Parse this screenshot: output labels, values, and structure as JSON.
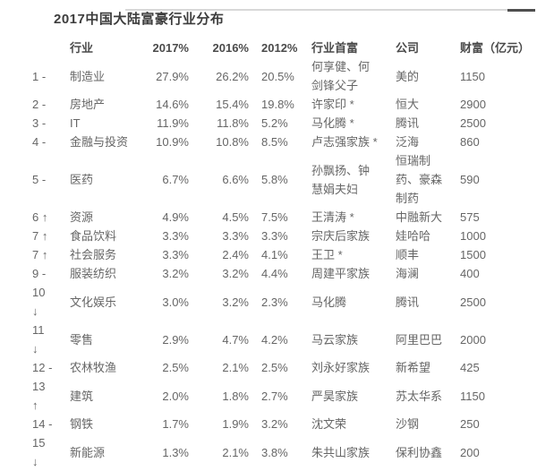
{
  "title": "2017中国大陆富豪行业分布",
  "colors": {
    "background": "#ffffff",
    "title_text": "#3d3d3d",
    "header_text": "#4a4a4a",
    "body_text": "#666666",
    "top_line_light": "#d8d8d8",
    "top_line_dark": "#4f4f4f"
  },
  "icons": {
    "rank-up-icon": "↑",
    "rank-down-icon": "↓",
    "rank-unchanged-icon": "-"
  },
  "chart_data": {
    "type": "table",
    "title": "2017中国大陆富豪行业分布",
    "columns": [
      {
        "key": "rank",
        "label": ""
      },
      {
        "key": "industry",
        "label": "行业"
      },
      {
        "key": "p2017",
        "label": "2017%"
      },
      {
        "key": "p2016",
        "label": "2016%"
      },
      {
        "key": "p2012",
        "label": "2012%"
      },
      {
        "key": "richest",
        "label": "行业首富"
      },
      {
        "key": "company",
        "label": "公司"
      },
      {
        "key": "wealth",
        "label": "财富（亿元）"
      }
    ],
    "rows": [
      {
        "rank": "1 -",
        "industry": "制造业",
        "p2017": "27.9%",
        "p2016": "26.2%",
        "p2012": "20.5%",
        "richest": "何享健、何\n剑锋父子",
        "company": "美的",
        "wealth": "1150"
      },
      {
        "rank": "2 -",
        "industry": "房地产",
        "p2017": "14.6%",
        "p2016": "15.4%",
        "p2012": "19.8%",
        "richest": "许家印 *",
        "company": "恒大",
        "wealth": "2900"
      },
      {
        "rank": "3 -",
        "industry": "IT",
        "p2017": "11.9%",
        "p2016": "11.8%",
        "p2012": "5.2%",
        "richest": "马化腾 *",
        "company": "腾讯",
        "wealth": "2500"
      },
      {
        "rank": "4 -",
        "industry": "金融与投资",
        "p2017": "10.9%",
        "p2016": "10.8%",
        "p2012": "8.5%",
        "richest": "卢志强家族 *",
        "company": "泛海",
        "wealth": "860"
      },
      {
        "rank": "5 -",
        "industry": "医药",
        "p2017": "6.7%",
        "p2016": "6.6%",
        "p2012": "5.8%",
        "richest": "孙飘扬、钟\n慧娟夫妇",
        "company": "恒瑞制\n药、豪森\n制药",
        "wealth": "590"
      },
      {
        "rank": "6 ↑",
        "industry": "资源",
        "p2017": "4.9%",
        "p2016": "4.5%",
        "p2012": "7.5%",
        "richest": "王清涛 *",
        "company": "中融新大",
        "wealth": "575"
      },
      {
        "rank": "7 ↑",
        "industry": "食品饮料",
        "p2017": "3.3%",
        "p2016": "3.3%",
        "p2012": "3.3%",
        "richest": "宗庆后家族",
        "company": "娃哈哈",
        "wealth": "1000"
      },
      {
        "rank": "7 ↑",
        "industry": "社会服务",
        "p2017": "3.3%",
        "p2016": "2.4%",
        "p2012": "4.1%",
        "richest": "王卫 *",
        "company": "顺丰",
        "wealth": "1500"
      },
      {
        "rank": "9 -",
        "industry": "服装纺织",
        "p2017": "3.2%",
        "p2016": "3.2%",
        "p2012": "4.4%",
        "richest": "周建平家族",
        "company": "海澜",
        "wealth": "400"
      },
      {
        "rank": "10\n↓",
        "industry": "文化娱乐",
        "p2017": "3.0%",
        "p2016": "3.2%",
        "p2012": "2.3%",
        "richest": "马化腾",
        "company": "腾讯",
        "wealth": "2500"
      },
      {
        "rank": "11\n↓",
        "industry": "零售",
        "p2017": "2.9%",
        "p2016": "4.7%",
        "p2012": "4.2%",
        "richest": "马云家族",
        "company": "阿里巴巴",
        "wealth": "2000"
      },
      {
        "rank": "12 -",
        "industry": "农林牧渔",
        "p2017": "2.5%",
        "p2016": "2.1%",
        "p2012": "2.5%",
        "richest": "刘永好家族",
        "company": "新希望",
        "wealth": "425"
      },
      {
        "rank": "13\n↑",
        "industry": "建筑",
        "p2017": "2.0%",
        "p2016": "1.8%",
        "p2012": "2.7%",
        "richest": "严昊家族",
        "company": "苏太华系",
        "wealth": "1150"
      },
      {
        "rank": "14 -",
        "industry": "钢铁",
        "p2017": "1.7%",
        "p2016": "1.9%",
        "p2012": "3.2%",
        "richest": "沈文荣",
        "company": "沙钢",
        "wealth": "250"
      },
      {
        "rank": "15\n↓",
        "industry": "新能源",
        "p2017": "1.3%",
        "p2016": "2.1%",
        "p2012": "3.8%",
        "richest": "朱共山家族",
        "company": "保利协鑫",
        "wealth": "200"
      }
    ]
  }
}
